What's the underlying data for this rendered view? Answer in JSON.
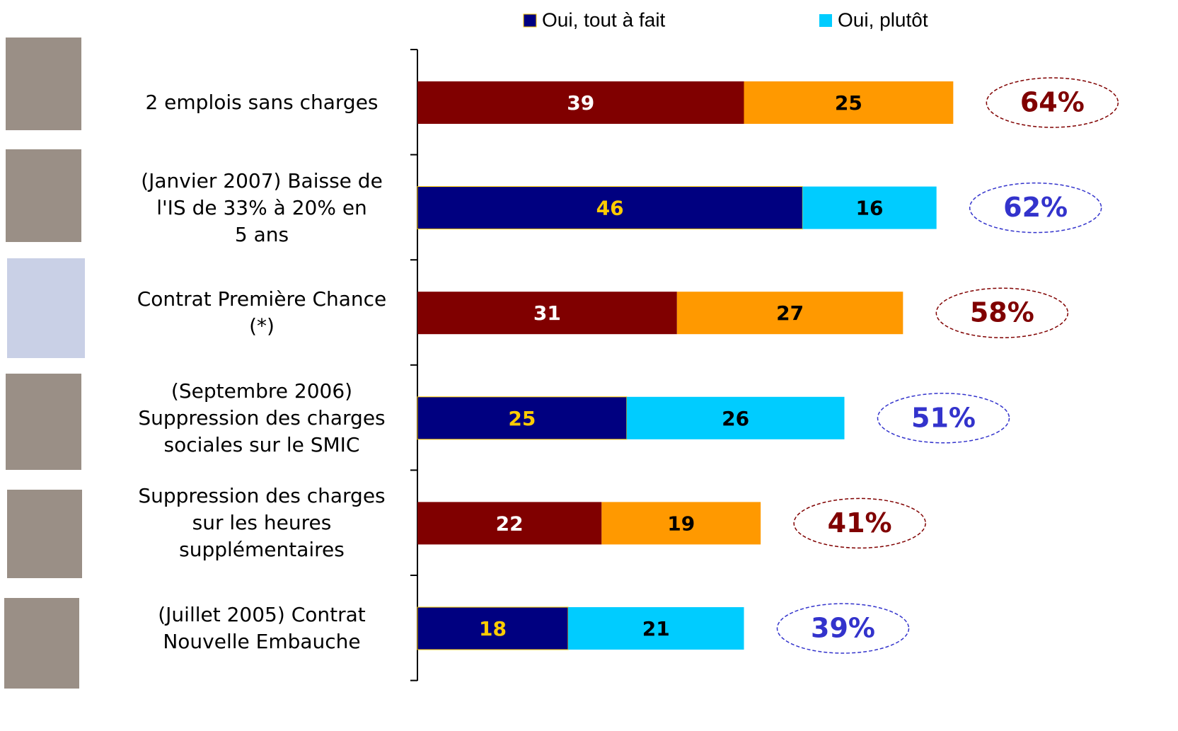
{
  "chart_data": {
    "type": "stacked-bar-horizontal",
    "categories": [
      "2 emplois sans charges",
      "(Janvier 2007) Baisse de\nl'IS de 33% à 20% en\n5 ans",
      "Contrat Première Chance\n(*)",
      "(Septembre 2006)\nSuppression des charges\nsociales sur le SMIC",
      "Suppression des charges\nsur les heures\nsupplémentaires",
      "(Juillet 2005) Contrat\nNouvelle Embauche"
    ],
    "series": [
      {
        "name": "Oui, tout à fait",
        "color": "#000080",
        "values": [
          39,
          46,
          31,
          25,
          22,
          18
        ],
        "colors": [
          "#800000",
          "#000080",
          "#800000",
          "#000080",
          "#800000",
          "#000080"
        ],
        "label_colors": [
          "#ffffff",
          "#ffcc00",
          "#ffffff",
          "#ffcc00",
          "#ffffff",
          "#ffcc00"
        ]
      },
      {
        "name": "Oui, plutôt",
        "color": "#00ccff",
        "values": [
          25,
          16,
          27,
          26,
          19,
          21
        ],
        "colors": [
          "#ff9900",
          "#00ccff",
          "#ff9900",
          "#00ccff",
          "#ff9900",
          "#00ccff"
        ],
        "label_colors": [
          "#000000",
          "#000000",
          "#000000",
          "#000000",
          "#000000",
          "#000000"
        ]
      }
    ],
    "totals": [
      64,
      62,
      58,
      51,
      41,
      39
    ],
    "total_labels": [
      "64%",
      "62%",
      "58%",
      "51%",
      "41%",
      "39%"
    ],
    "total_colors": [
      "#800000",
      "#3333cc",
      "#800000",
      "#3333cc",
      "#800000",
      "#3333cc"
    ],
    "xlim": [
      0,
      90
    ]
  }
}
